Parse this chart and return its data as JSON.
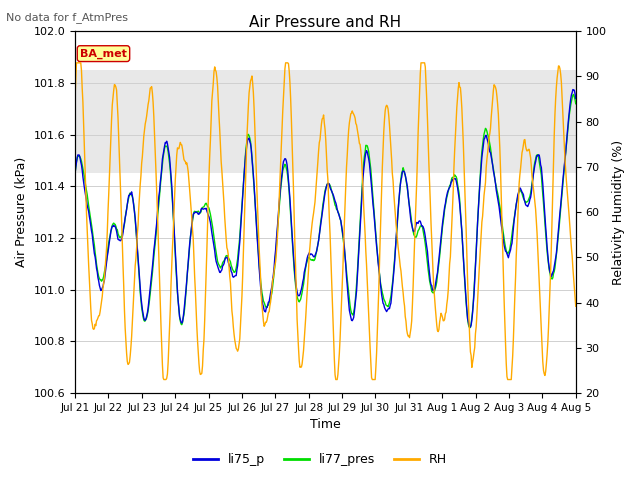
{
  "title": "Air Pressure and RH",
  "subtitle": "No data for f_AtmPres",
  "xlabel": "Time",
  "ylabel_left": "Air Pressure (kPa)",
  "ylabel_right": "Relativity Humidity (%)",
  "ylim_left": [
    100.6,
    102.0
  ],
  "ylim_right": [
    20,
    100
  ],
  "yticks_left": [
    100.6,
    100.8,
    101.0,
    101.2,
    101.4,
    101.6,
    101.8,
    102.0
  ],
  "yticks_right": [
    20,
    30,
    40,
    50,
    60,
    70,
    80,
    90,
    100
  ],
  "xtick_labels": [
    "Jul 21",
    "Jul 22",
    "Jul 23",
    "Jul 24",
    "Jul 25",
    "Jul 26",
    "Jul 27",
    "Jul 28",
    "Jul 29",
    "Jul 30",
    "Jul 31",
    "Aug 1",
    "Aug 2",
    "Aug 3",
    "Aug 4",
    "Aug 5"
  ],
  "color_li75p": "#0000dd",
  "color_li77pres": "#00dd00",
  "color_rh": "#ffaa00",
  "legend_labels": [
    "li75_p",
    "li77_pres",
    "RH"
  ],
  "ba_met_box_color": "#ffff99",
  "ba_met_text_color": "#cc0000",
  "grid_color": "#d0d0d0",
  "plot_bg_color": "#ffffff",
  "gray_band_color": "#e8e8e8",
  "n_points": 700,
  "seed": 42
}
